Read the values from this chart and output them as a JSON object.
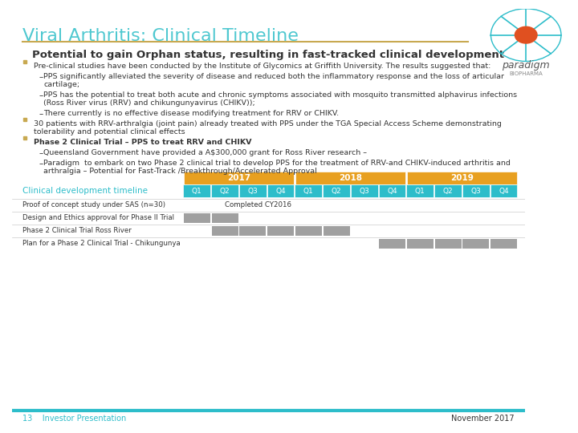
{
  "title": "Viral Arthritis: Clinical Timeline",
  "subtitle": "Potential to gain Orphan status, resulting in fast-tracked clinical development",
  "title_color": "#4fc8d0",
  "subtitle_color": "#333333",
  "gold_line_color": "#c8a951",
  "background_color": "#ffffff",
  "bullet_color": "#c8a951",
  "text_color": "#333333",
  "teal_color": "#2dbdca",
  "gray_bar_color": "#a0a0a0",
  "footer_color": "#2dbdca",
  "year_header_color": "#e8a020",
  "quarter_header_color": "#2dbdca",
  "years": [
    "2017",
    "2018",
    "2019"
  ],
  "quarters": [
    "Q1",
    "Q2",
    "Q3",
    "Q4",
    "Q1",
    "Q2",
    "Q3",
    "Q4",
    "Q1",
    "Q2",
    "Q3",
    "Q4"
  ],
  "timeline_label": "Clinical development timeline",
  "rows": [
    {
      "label": "Proof of concept study under SAS (n=30)",
      "text": "Completed CY2016",
      "bars": []
    },
    {
      "label": "Design and Ethics approval for Phase II Trial",
      "text": "",
      "bars": [
        0,
        1
      ]
    },
    {
      "label": "Phase 2 Clinical Trial Ross River",
      "text": "",
      "bars": [
        1,
        2,
        3,
        4,
        5
      ]
    },
    {
      "label": "Plan for a Phase 2 Clinical Trial - Chikungunya",
      "text": "",
      "bars": [
        7,
        8,
        9,
        10,
        11
      ]
    }
  ],
  "footer_left": "13    Investor Presentation",
  "footer_right": "November 2017"
}
